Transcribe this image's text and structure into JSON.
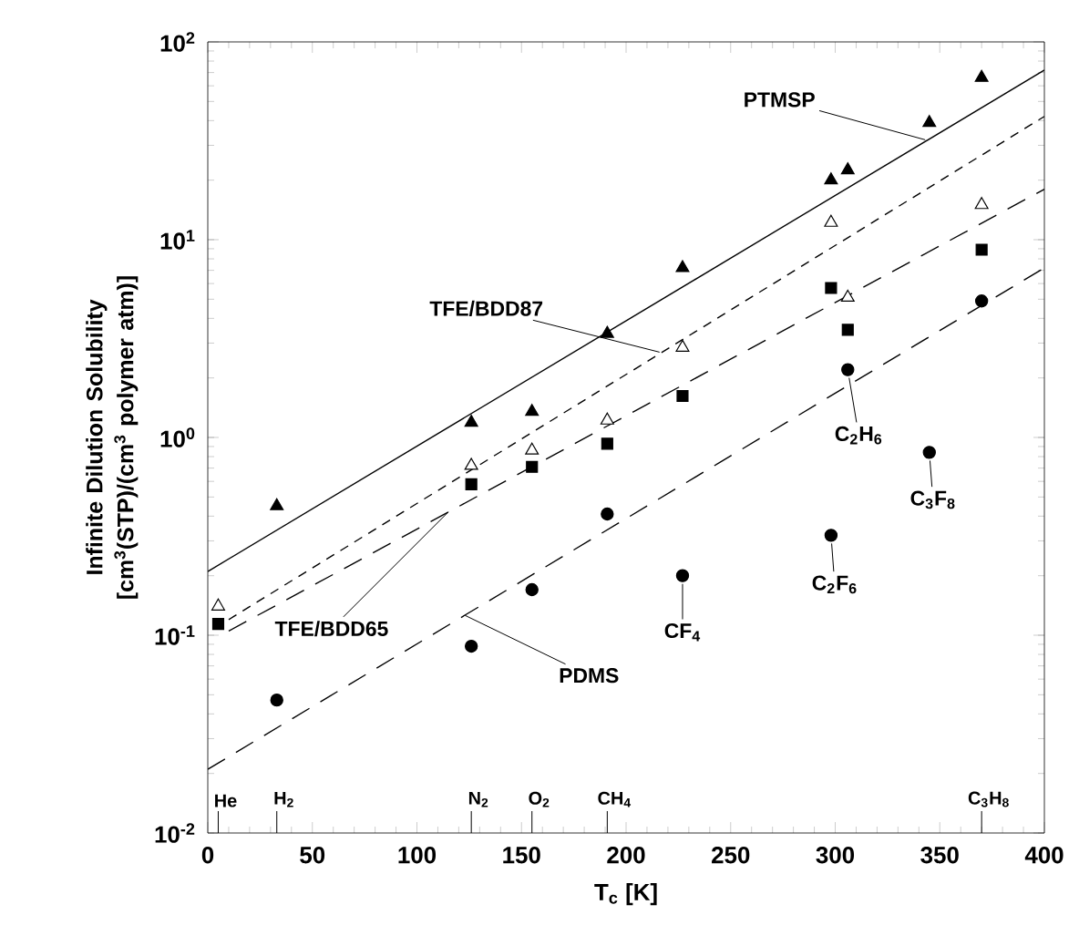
{
  "chart_data": {
    "type": "scatter",
    "xlabel": "T$_{c}$ [K]",
    "ylabel": "Infinite Dilution Solubility [cm$^{3}$(STP)/(cm$^{3}$ polymer atm)]",
    "xlim": [
      0,
      400
    ],
    "xticks": [
      0,
      50,
      100,
      150,
      200,
      250,
      300,
      350,
      400
    ],
    "ylim": [
      0.01,
      100
    ],
    "yticks": [
      {
        "value": 0.01,
        "label": "10$^{-2}$"
      },
      {
        "value": 0.1,
        "label": "10$^{-1}$"
      },
      {
        "value": 1,
        "label": "10$^{0}$"
      },
      {
        "value": 10,
        "label": "10$^{1}$"
      },
      {
        "value": 100,
        "label": "10$^{2}$"
      }
    ],
    "log": "y",
    "grid": false,
    "series": [
      {
        "marker": "triangle",
        "color": "#000000",
        "x": [
          33,
          126,
          155,
          191,
          227,
          298,
          306,
          345,
          370
        ],
        "values": [
          0.45,
          1.19,
          1.35,
          3.35,
          7.2,
          20,
          22.5,
          39,
          66
        ]
      },
      {
        "marker": "triangle",
        "color": "#ffffff",
        "x": [
          5,
          126,
          155,
          191,
          227,
          298,
          306,
          370
        ],
        "values": [
          0.14,
          0.72,
          0.86,
          1.22,
          2.85,
          12.2,
          5.1,
          15
        ]
      },
      {
        "marker": "square",
        "color": "#000000",
        "x": [
          5,
          126,
          155,
          191,
          227,
          298,
          306,
          370
        ],
        "values": [
          0.114,
          0.58,
          0.71,
          0.93,
          1.62,
          5.7,
          3.5,
          8.9
        ]
      },
      {
        "marker": "circle",
        "color": "#000000",
        "x": [
          33,
          126,
          155,
          191,
          227,
          298,
          306,
          345,
          370
        ],
        "values": [
          0.047,
          0.088,
          0.17,
          0.41,
          0.2,
          0.32,
          2.2,
          0.84,
          4.9
        ]
      },
      {
        "type": "line",
        "line_style": "solid",
        "color": "#000000",
        "x": [
          0,
          400
        ],
        "values": [
          0.21,
          72
        ]
      },
      {
        "type": "line",
        "line_style": "dotted",
        "color": "#000000",
        "x": [
          10,
          400
        ],
        "values": [
          0.12,
          42
        ]
      },
      {
        "type": "line",
        "line_style": "dashed",
        "color": "#000000",
        "x": [
          10,
          400
        ],
        "values": [
          0.105,
          18
        ]
      },
      {
        "type": "line",
        "line_style": "dashed",
        "color": "#000000",
        "x": [
          0,
          400
        ],
        "values": [
          0.021,
          7.2
        ]
      }
    ],
    "annotations": [
      {
        "text": "PTMSP",
        "x": 343,
        "y": 32
      },
      {
        "text": "TFE/BDD87",
        "x": 216,
        "y": 2.7
      },
      {
        "text": "TFE/BDD65",
        "x": 115,
        "y": 0.42
      },
      {
        "text": "PDMS",
        "x": 123,
        "y": 0.126
      },
      {
        "text": "CF$_{4}$",
        "x": 227,
        "y": 0.2
      },
      {
        "text": "C$_{2}$F$_{6}$",
        "x": 298,
        "y": 0.32
      },
      {
        "text": "C$_{2}$H$_{6}$",
        "x": 306,
        "y": 2.2
      },
      {
        "text": "C$_{3}$F$_{8}$",
        "x": 345,
        "y": 0.84
      }
    ],
    "ref_lines": [
      {
        "axis": "x",
        "value": 5,
        "label": "He"
      },
      {
        "axis": "x",
        "value": 33,
        "label": "H$_{2}$"
      },
      {
        "axis": "x",
        "value": 126,
        "label": "N$_{2}$"
      },
      {
        "axis": "x",
        "value": 155,
        "label": "O$_{2}$"
      },
      {
        "axis": "x",
        "value": 191,
        "label": "CH$_{4}$"
      },
      {
        "axis": "x",
        "value": 370,
        "label": "C$_{3}$H$_{8}$"
      }
    ]
  }
}
